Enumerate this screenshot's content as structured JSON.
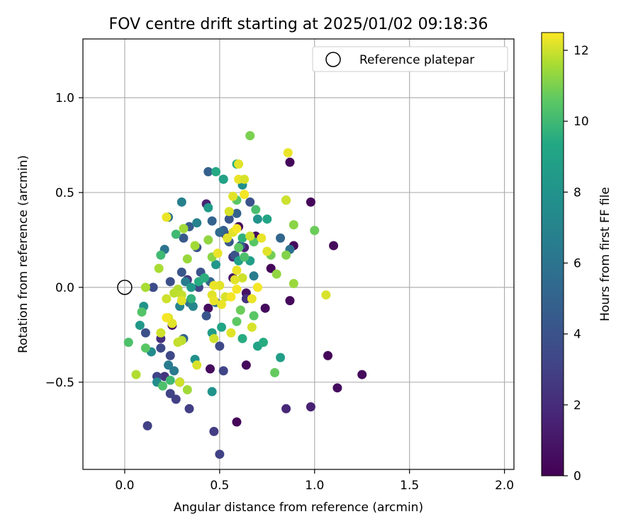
{
  "chart_data": {
    "type": "scatter",
    "title": "FOV centre drift starting at 2025/01/02 09:18:36",
    "xlabel": "Angular distance from reference (arcmin)",
    "ylabel": "Rotation from reference (arcmin)",
    "xlim": [
      -0.22,
      2.05
    ],
    "ylim": [
      -0.96,
      1.31
    ],
    "xticks": [
      0.0,
      0.5,
      1.0,
      1.5,
      2.0
    ],
    "xtick_labels": [
      "0.0",
      "0.5",
      "1.0",
      "1.5",
      "2.0"
    ],
    "yticks": [
      -0.5,
      0.0,
      0.5,
      1.0
    ],
    "ytick_labels": [
      "−0.5",
      "0.0",
      "0.5",
      "1.0"
    ],
    "grid": true,
    "legend": {
      "position": "top-right",
      "label": "Reference platepar"
    },
    "reference_point": {
      "x": 0.0,
      "y": 0.0
    },
    "colorbar": {
      "label": "Hours from first FF file",
      "colormap": "viridis",
      "range": [
        0,
        12.5
      ],
      "ticks": [
        0,
        2,
        4,
        6,
        8,
        10,
        12
      ],
      "tick_labels": [
        "0",
        "2",
        "4",
        "6",
        "8",
        "10",
        "12"
      ]
    },
    "points": [
      {
        "x": 0.87,
        "y": 0.66,
        "t": 0.3
      },
      {
        "x": 0.98,
        "y": 0.45,
        "t": 0.3
      },
      {
        "x": 1.1,
        "y": 0.22,
        "t": 0.4
      },
      {
        "x": 0.89,
        "y": 0.22,
        "t": 0.4
      },
      {
        "x": 0.77,
        "y": 0.1,
        "t": 0.3
      },
      {
        "x": 0.87,
        "y": -0.07,
        "t": 0.4
      },
      {
        "x": 0.74,
        "y": -0.11,
        "t": 0.4
      },
      {
        "x": 1.07,
        "y": -0.36,
        "t": 0.3
      },
      {
        "x": 1.25,
        "y": -0.46,
        "t": 0.4
      },
      {
        "x": 1.12,
        "y": -0.53,
        "t": 0.5
      },
      {
        "x": 0.64,
        "y": -0.41,
        "t": 0.4
      },
      {
        "x": 0.59,
        "y": -0.71,
        "t": 0.3
      },
      {
        "x": 0.45,
        "y": -0.43,
        "t": 0.5
      },
      {
        "x": 0.44,
        "y": -0.11,
        "t": 0.6
      },
      {
        "x": 0.6,
        "y": 0.32,
        "t": 0.5
      },
      {
        "x": 0.69,
        "y": 0.27,
        "t": 0.5
      },
      {
        "x": 0.29,
        "y": -0.5,
        "t": 0.6
      },
      {
        "x": 0.25,
        "y": -0.2,
        "t": 0.8
      },
      {
        "x": 0.64,
        "y": -0.03,
        "t": 0.8
      },
      {
        "x": 0.57,
        "y": 0.05,
        "t": 0.9
      },
      {
        "x": 0.98,
        "y": -0.63,
        "t": 1.5
      },
      {
        "x": 0.85,
        "y": -0.64,
        "t": 1.8
      },
      {
        "x": 0.43,
        "y": 0.44,
        "t": 1.6
      },
      {
        "x": 0.53,
        "y": 0.28,
        "t": 1.9
      },
      {
        "x": 0.63,
        "y": 0.21,
        "t": 1.6
      },
      {
        "x": 0.21,
        "y": -0.47,
        "t": 2.4
      },
      {
        "x": 0.19,
        "y": -0.27,
        "t": 2.2
      },
      {
        "x": 0.33,
        "y": 0.04,
        "t": 2.5
      },
      {
        "x": 0.57,
        "y": 0.16,
        "t": 2.2
      },
      {
        "x": 0.64,
        "y": -0.06,
        "t": 2.3
      },
      {
        "x": 0.47,
        "y": -0.76,
        "t": 2.8
      },
      {
        "x": 0.5,
        "y": -0.88,
        "t": 3.1
      },
      {
        "x": 0.12,
        "y": -0.73,
        "t": 3.0
      },
      {
        "x": 0.34,
        "y": -0.64,
        "t": 2.9
      },
      {
        "x": 0.27,
        "y": -0.59,
        "t": 3.0
      },
      {
        "x": 0.24,
        "y": -0.56,
        "t": 3.1
      },
      {
        "x": 0.17,
        "y": -0.47,
        "t": 3.1
      },
      {
        "x": 0.52,
        "y": -0.44,
        "t": 3.2
      },
      {
        "x": 0.24,
        "y": -0.36,
        "t": 3.4
      },
      {
        "x": 0.19,
        "y": -0.32,
        "t": 3.5
      },
      {
        "x": 0.5,
        "y": -0.31,
        "t": 3.5
      },
      {
        "x": 0.11,
        "y": -0.24,
        "t": 3.8
      },
      {
        "x": 0.15,
        "y": 0.0,
        "t": 3.6
      },
      {
        "x": 0.24,
        "y": 0.03,
        "t": 3.8
      },
      {
        "x": 0.39,
        "y": 0.0,
        "t": 3.3
      },
      {
        "x": 0.43,
        "y": -0.15,
        "t": 4.2
      },
      {
        "x": 0.4,
        "y": 0.08,
        "t": 4.0
      },
      {
        "x": 0.3,
        "y": 0.08,
        "t": 4.2
      },
      {
        "x": 0.38,
        "y": 0.21,
        "t": 4.0
      },
      {
        "x": 0.31,
        "y": 0.26,
        "t": 4.3
      },
      {
        "x": 0.34,
        "y": 0.32,
        "t": 4.5
      },
      {
        "x": 0.58,
        "y": 0.17,
        "t": 4.0
      },
      {
        "x": 0.55,
        "y": 0.24,
        "t": 4.4
      },
      {
        "x": 0.61,
        "y": 0.22,
        "t": 4.6
      },
      {
        "x": 0.52,
        "y": 0.3,
        "t": 4.8
      },
      {
        "x": 0.55,
        "y": 0.36,
        "t": 4.2
      },
      {
        "x": 0.59,
        "y": 0.39,
        "t": 5.0
      },
      {
        "x": 0.66,
        "y": 0.45,
        "t": 4.0
      },
      {
        "x": 0.44,
        "y": 0.61,
        "t": 4.8
      },
      {
        "x": 0.82,
        "y": 0.26,
        "t": 5.2
      },
      {
        "x": 0.87,
        "y": 0.2,
        "t": 5.8
      },
      {
        "x": 0.46,
        "y": 0.35,
        "t": 5.0
      },
      {
        "x": 0.5,
        "y": 0.29,
        "t": 5.5
      },
      {
        "x": 0.45,
        "y": 0.03,
        "t": 5.2
      },
      {
        "x": 0.31,
        "y": -0.27,
        "t": 5.0
      },
      {
        "x": 0.48,
        "y": -0.08,
        "t": 5.5
      },
      {
        "x": 0.34,
        "y": -0.08,
        "t": 6.0
      },
      {
        "x": 0.21,
        "y": 0.2,
        "t": 6.0
      },
      {
        "x": 0.23,
        "y": 0.37,
        "t": 6.1
      },
      {
        "x": 0.26,
        "y": -0.44,
        "t": 6.3
      },
      {
        "x": 0.23,
        "y": -0.41,
        "t": 6.5
      },
      {
        "x": 0.32,
        "y": 0.03,
        "t": 6.5
      },
      {
        "x": 0.3,
        "y": 0.45,
        "t": 6.8
      },
      {
        "x": 0.38,
        "y": 0.34,
        "t": 6.9
      },
      {
        "x": 0.52,
        "y": 0.57,
        "t": 6.3
      },
      {
        "x": 0.68,
        "y": 0.06,
        "t": 6.5
      },
      {
        "x": 0.36,
        "y": -0.1,
        "t": 7.2
      },
      {
        "x": 0.29,
        "y": -0.1,
        "t": 7.0
      },
      {
        "x": 0.46,
        "y": -0.55,
        "t": 8.0
      },
      {
        "x": 0.17,
        "y": -0.5,
        "t": 7.6
      },
      {
        "x": 0.14,
        "y": -0.34,
        "t": 7.5
      },
      {
        "x": 0.1,
        "y": -0.1,
        "t": 8.0
      },
      {
        "x": 0.08,
        "y": -0.2,
        "t": 8.3
      },
      {
        "x": 0.37,
        "y": -0.38,
        "t": 7.8
      },
      {
        "x": 0.35,
        "y": 0.0,
        "t": 8.4
      },
      {
        "x": 0.48,
        "y": 0.12,
        "t": 8.2
      },
      {
        "x": 0.44,
        "y": 0.42,
        "t": 8.5
      },
      {
        "x": 0.62,
        "y": 0.54,
        "t": 7.8
      },
      {
        "x": 0.7,
        "y": 0.36,
        "t": 8.0
      },
      {
        "x": 0.46,
        "y": -0.24,
        "t": 8.6
      },
      {
        "x": 0.82,
        "y": -0.37,
        "t": 8.7
      },
      {
        "x": 0.66,
        "y": 0.14,
        "t": 8.8
      },
      {
        "x": 0.6,
        "y": 0.14,
        "t": 9.0
      },
      {
        "x": 0.75,
        "y": 0.36,
        "t": 9.2
      },
      {
        "x": 0.85,
        "y": 0.46,
        "t": 9.4
      },
      {
        "x": 0.51,
        "y": -0.21,
        "t": 9.2
      },
      {
        "x": 0.62,
        "y": -0.27,
        "t": 9.5
      },
      {
        "x": 0.7,
        "y": -0.31,
        "t": 9.0
      },
      {
        "x": 0.73,
        "y": -0.29,
        "t": 9.5
      },
      {
        "x": 0.39,
        "y": 0.03,
        "t": 9.5
      },
      {
        "x": 0.35,
        "y": -0.06,
        "t": 9.7
      },
      {
        "x": 0.42,
        "y": 0.05,
        "t": 9.6
      },
      {
        "x": 0.52,
        "y": 0.57,
        "t": 9.0
      },
      {
        "x": 0.48,
        "y": 0.61,
        "t": 9.4
      },
      {
        "x": 0.59,
        "y": 0.65,
        "t": 9.6
      },
      {
        "x": 0.62,
        "y": 0.26,
        "t": 9.7
      },
      {
        "x": 0.27,
        "y": 0.28,
        "t": 10.0
      },
      {
        "x": 0.19,
        "y": 0.17,
        "t": 10.0
      },
      {
        "x": 0.02,
        "y": -0.29,
        "t": 10.3
      },
      {
        "x": 0.11,
        "y": -0.32,
        "t": 10.5
      },
      {
        "x": 0.09,
        "y": -0.13,
        "t": 10.4
      },
      {
        "x": 0.24,
        "y": -0.49,
        "t": 10.0
      },
      {
        "x": 0.2,
        "y": -0.52,
        "t": 10.3
      },
      {
        "x": 0.69,
        "y": 0.41,
        "t": 10.2
      },
      {
        "x": 0.59,
        "y": 0.46,
        "t": 10.5
      },
      {
        "x": 0.6,
        "y": 0.21,
        "t": 10.6
      },
      {
        "x": 0.68,
        "y": 0.24,
        "t": 10.5
      },
      {
        "x": 0.63,
        "y": 0.16,
        "t": 10.3
      },
      {
        "x": 0.61,
        "y": -0.12,
        "t": 10.8
      },
      {
        "x": 0.59,
        "y": -0.18,
        "t": 10.6
      },
      {
        "x": 0.68,
        "y": -0.15,
        "t": 10.5
      },
      {
        "x": 0.79,
        "y": -0.45,
        "t": 10.7
      },
      {
        "x": 1.0,
        "y": 0.3,
        "t": 10.8
      },
      {
        "x": 0.66,
        "y": 0.8,
        "t": 11.0
      },
      {
        "x": 0.77,
        "y": 0.17,
        "t": 10.9
      },
      {
        "x": 0.85,
        "y": 0.17,
        "t": 11.1
      },
      {
        "x": 0.89,
        "y": 0.33,
        "t": 11.2
      },
      {
        "x": 0.8,
        "y": 0.07,
        "t": 11.3
      },
      {
        "x": 0.89,
        "y": 0.02,
        "t": 11.4
      },
      {
        "x": 0.46,
        "y": 0.16,
        "t": 11.2
      },
      {
        "x": 0.44,
        "y": 0.25,
        "t": 11.3
      },
      {
        "x": 0.37,
        "y": 0.22,
        "t": 11.5
      },
      {
        "x": 0.33,
        "y": 0.15,
        "t": 11.4
      },
      {
        "x": 0.18,
        "y": 0.1,
        "t": 11.6
      },
      {
        "x": 0.31,
        "y": 0.31,
        "t": 11.5
      },
      {
        "x": 0.28,
        "y": -0.01,
        "t": 11.7
      },
      {
        "x": 0.26,
        "y": -0.03,
        "t": 11.8
      },
      {
        "x": 0.3,
        "y": -0.04,
        "t": 11.9
      },
      {
        "x": 0.22,
        "y": -0.06,
        "t": 12.0
      },
      {
        "x": 0.23,
        "y": -0.16,
        "t": 12.1
      },
      {
        "x": 0.25,
        "y": -0.19,
        "t": 12.2
      },
      {
        "x": 0.19,
        "y": -0.24,
        "t": 12.0
      },
      {
        "x": 0.3,
        "y": -0.28,
        "t": 11.8
      },
      {
        "x": 0.28,
        "y": -0.29,
        "t": 11.9
      },
      {
        "x": 0.29,
        "y": -0.5,
        "t": 12.0
      },
      {
        "x": 0.33,
        "y": -0.54,
        "t": 11.5
      },
      {
        "x": 0.06,
        "y": -0.46,
        "t": 11.7
      },
      {
        "x": 0.11,
        "y": 0.0,
        "t": 11.6
      },
      {
        "x": 0.38,
        "y": -0.41,
        "t": 12.1
      },
      {
        "x": 0.47,
        "y": -0.27,
        "t": 12.0
      },
      {
        "x": 0.5,
        "y": 0.01,
        "t": 12.2
      },
      {
        "x": 0.53,
        "y": -0.05,
        "t": 12.1
      },
      {
        "x": 0.51,
        "y": -0.09,
        "t": 12.3
      },
      {
        "x": 0.46,
        "y": -0.04,
        "t": 12.2
      },
      {
        "x": 0.47,
        "y": -0.07,
        "t": 12.3
      },
      {
        "x": 0.56,
        "y": -0.05,
        "t": 12.4
      },
      {
        "x": 0.62,
        "y": 0.05,
        "t": 12.0
      },
      {
        "x": 0.58,
        "y": 0.04,
        "t": 12.2
      },
      {
        "x": 0.59,
        "y": 0.09,
        "t": 12.3
      },
      {
        "x": 0.55,
        "y": 0.4,
        "t": 12.1
      },
      {
        "x": 0.57,
        "y": 0.48,
        "t": 12.2
      },
      {
        "x": 0.63,
        "y": 0.49,
        "t": 12.4
      },
      {
        "x": 0.6,
        "y": 0.57,
        "t": 12.3
      },
      {
        "x": 0.63,
        "y": 0.57,
        "t": 12.1
      },
      {
        "x": 0.57,
        "y": 0.29,
        "t": 12.2
      },
      {
        "x": 0.59,
        "y": 0.31,
        "t": 12.4
      },
      {
        "x": 0.66,
        "y": 0.27,
        "t": 12.0
      },
      {
        "x": 0.72,
        "y": 0.26,
        "t": 12.3
      },
      {
        "x": 0.75,
        "y": 0.19,
        "t": 12.2
      },
      {
        "x": 0.7,
        "y": 0.0,
        "t": 12.4
      },
      {
        "x": 0.67,
        "y": -0.06,
        "t": 12.3
      },
      {
        "x": 0.67,
        "y": -0.21,
        "t": 12.1
      },
      {
        "x": 0.56,
        "y": -0.24,
        "t": 12.2
      },
      {
        "x": 0.59,
        "y": -0.01,
        "t": 12.4
      },
      {
        "x": 0.86,
        "y": 0.71,
        "t": 12.3
      },
      {
        "x": 0.6,
        "y": 0.65,
        "t": 12.2
      },
      {
        "x": 0.85,
        "y": 0.46,
        "t": 12.0
      },
      {
        "x": 1.06,
        "y": -0.04,
        "t": 12.1
      },
      {
        "x": 0.3,
        "y": -0.07,
        "t": 12.2
      },
      {
        "x": 0.22,
        "y": -0.16,
        "t": 12.4
      },
      {
        "x": 0.47,
        "y": 0.01,
        "t": 12.3
      },
      {
        "x": 0.49,
        "y": 0.18,
        "t": 12.3
      },
      {
        "x": 0.54,
        "y": 0.26,
        "t": 12.2
      },
      {
        "x": 0.22,
        "y": 0.37,
        "t": 12.3
      }
    ]
  }
}
